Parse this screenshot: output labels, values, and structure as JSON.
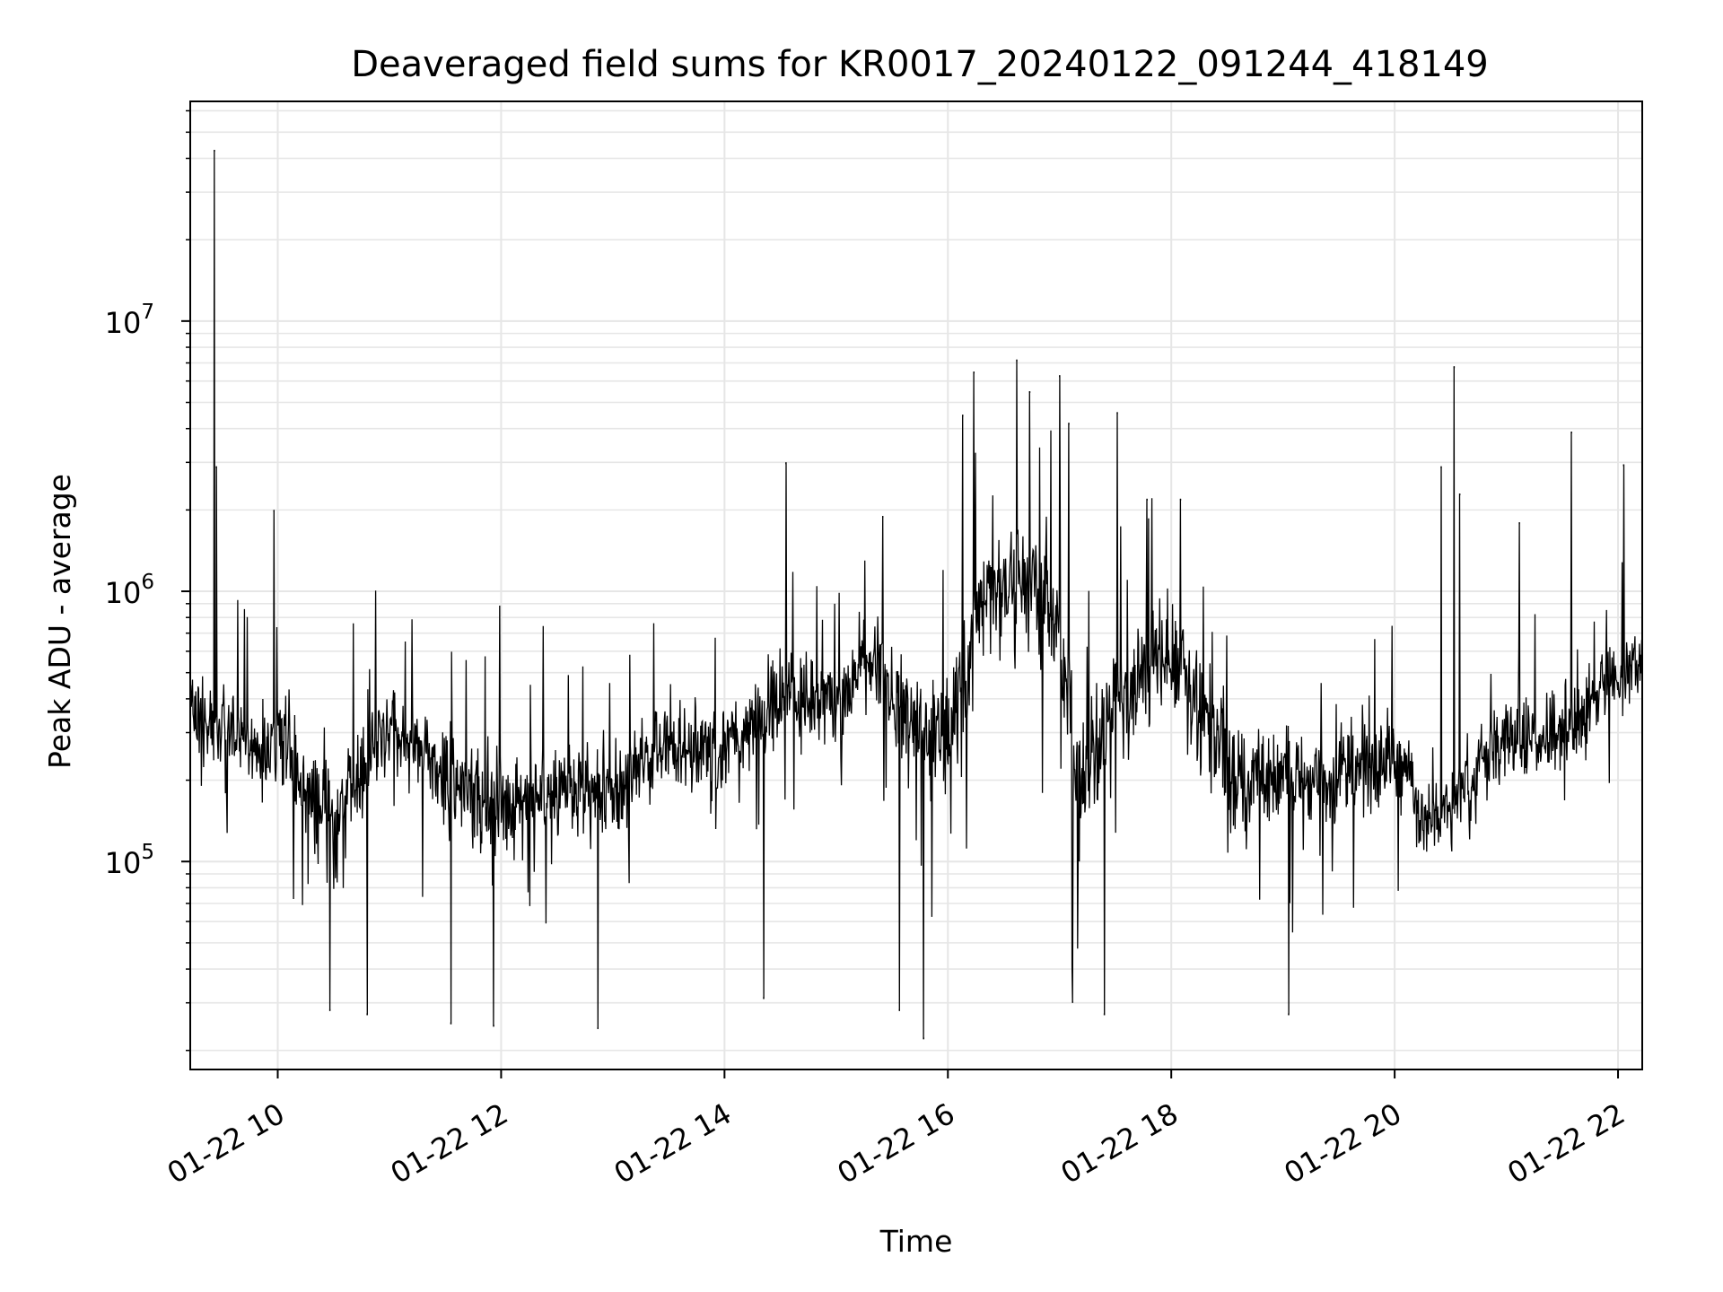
{
  "chart_data": {
    "type": "line",
    "title": "Deaveraged field sums for KR0017_20240122_091244_418149",
    "xlabel": "Time",
    "ylabel": "Peak ADU - average",
    "x_axis": {
      "type": "time",
      "range": [
        "2024-01-22 09:13",
        "2024-01-22 22:13"
      ],
      "tick_values": [
        "2024-01-22 10:00",
        "2024-01-22 12:00",
        "2024-01-22 14:00",
        "2024-01-22 16:00",
        "2024-01-22 18:00",
        "2024-01-22 20:00",
        "2024-01-22 22:00"
      ],
      "tick_labels": [
        "01-22 10",
        "01-22 12",
        "01-22 14",
        "01-22 16",
        "01-22 18",
        "01-22 20",
        "01-22 22"
      ]
    },
    "y_axis": {
      "scale": "log",
      "range": [
        17000,
        65000000
      ],
      "tick_values": [
        100000,
        1000000,
        10000000
      ],
      "tick_labels": [
        {
          "base": "10",
          "exp": "5"
        },
        {
          "base": "10",
          "exp": "6"
        },
        {
          "base": "10",
          "exp": "7"
        }
      ]
    },
    "grid": true,
    "legend": "none",
    "series": [
      {
        "color": "#000000",
        "anchors": {
          "time": [
            "2024-01-22 09:13",
            "2024-01-22 09:30",
            "2024-01-22 10:00",
            "2024-01-22 10:30",
            "2024-01-22 11:00",
            "2024-01-22 11:30",
            "2024-01-22 12:00",
            "2024-01-22 12:30",
            "2024-01-22 13:00",
            "2024-01-22 13:30",
            "2024-01-22 14:00",
            "2024-01-22 14:30",
            "2024-01-22 15:00",
            "2024-01-22 15:20",
            "2024-01-22 15:40",
            "2024-01-22 16:00",
            "2024-01-22 16:20",
            "2024-01-22 16:40",
            "2024-01-22 17:00",
            "2024-01-22 17:10",
            "2024-01-22 17:30",
            "2024-01-22 17:50",
            "2024-01-22 18:10",
            "2024-01-22 18:30",
            "2024-01-22 19:00",
            "2024-01-22 19:30",
            "2024-01-22 20:00",
            "2024-01-22 20:20",
            "2024-01-22 20:40",
            "2024-01-22 21:00",
            "2024-01-22 21:30",
            "2024-01-22 22:00",
            "2024-01-22 22:13"
          ],
          "median": [
            360000,
            300000,
            280000,
            140000,
            320000,
            210000,
            160000,
            200000,
            180000,
            280000,
            250000,
            420000,
            380000,
            550000,
            330000,
            290000,
            1000000,
            1100000,
            750000,
            180000,
            380000,
            580000,
            480000,
            200000,
            200000,
            220000,
            230000,
            130000,
            190000,
            280000,
            300000,
            480000,
            600000
          ],
          "spread": [
            0.3,
            0.35,
            0.34,
            0.38,
            0.34,
            0.36,
            0.36,
            0.34,
            0.33,
            0.32,
            0.33,
            0.31,
            0.3,
            0.3,
            0.4,
            0.42,
            0.42,
            0.42,
            0.45,
            0.45,
            0.42,
            0.4,
            0.38,
            0.38,
            0.36,
            0.34,
            0.3,
            0.26,
            0.3,
            0.3,
            0.3,
            0.26,
            0.24
          ]
        },
        "peaks": [
          {
            "time": "2024-01-22 09:26",
            "value": 43000000
          },
          {
            "time": "2024-01-22 09:27",
            "value": 2900000
          },
          {
            "time": "2024-01-22 09:58",
            "value": 2000000
          },
          {
            "time": "2024-01-22 14:33",
            "value": 3000000
          },
          {
            "time": "2024-01-22 15:25",
            "value": 1900000
          },
          {
            "time": "2024-01-22 16:08",
            "value": 4500000
          },
          {
            "time": "2024-01-22 16:14",
            "value": 6500000
          },
          {
            "time": "2024-01-22 16:37",
            "value": 7200000
          },
          {
            "time": "2024-01-22 16:44",
            "value": 5500000
          },
          {
            "time": "2024-01-22 17:00",
            "value": 6300000
          },
          {
            "time": "2024-01-22 17:05",
            "value": 4200000
          },
          {
            "time": "2024-01-22 17:31",
            "value": 4600000
          },
          {
            "time": "2024-01-22 17:47",
            "value": 2200000
          },
          {
            "time": "2024-01-22 18:05",
            "value": 2200000
          },
          {
            "time": "2024-01-22 20:25",
            "value": 2900000
          },
          {
            "time": "2024-01-22 20:32",
            "value": 6800000
          },
          {
            "time": "2024-01-22 20:35",
            "value": 2300000
          },
          {
            "time": "2024-01-22 21:07",
            "value": 1800000
          },
          {
            "time": "2024-01-22 21:35",
            "value": 3900000
          },
          {
            "time": "2024-01-22 22:03",
            "value": 2950000
          }
        ],
        "troughs": [
          {
            "time": "2024-01-22 10:28",
            "value": 28000
          },
          {
            "time": "2024-01-22 10:48",
            "value": 27000
          },
          {
            "time": "2024-01-22 11:33",
            "value": 25000
          },
          {
            "time": "2024-01-22 11:56",
            "value": 24500
          },
          {
            "time": "2024-01-22 12:52",
            "value": 24000
          },
          {
            "time": "2024-01-22 14:21",
            "value": 31000
          },
          {
            "time": "2024-01-22 15:34",
            "value": 28000
          },
          {
            "time": "2024-01-22 15:47",
            "value": 22000
          },
          {
            "time": "2024-01-22 17:07",
            "value": 30000
          },
          {
            "time": "2024-01-22 17:24",
            "value": 27000
          },
          {
            "time": "2024-01-22 19:03",
            "value": 27000
          }
        ]
      }
    ]
  }
}
